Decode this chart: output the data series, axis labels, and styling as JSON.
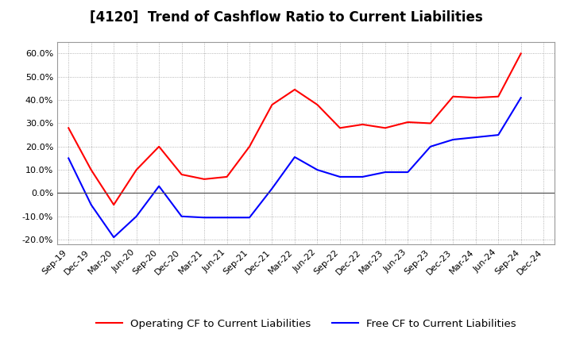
{
  "title": "[4120]  Trend of Cashflow Ratio to Current Liabilities",
  "x_labels": [
    "Sep-19",
    "Dec-19",
    "Mar-20",
    "Jun-20",
    "Sep-20",
    "Dec-20",
    "Mar-21",
    "Jun-21",
    "Sep-21",
    "Dec-21",
    "Mar-22",
    "Jun-22",
    "Sep-22",
    "Dec-22",
    "Mar-23",
    "Jun-23",
    "Sep-23",
    "Dec-23",
    "Mar-24",
    "Jun-24",
    "Sep-24",
    "Dec-24"
  ],
  "operating_cf": [
    0.28,
    0.1,
    -0.05,
    0.1,
    0.2,
    0.08,
    0.06,
    0.07,
    0.2,
    0.38,
    0.445,
    0.38,
    0.28,
    0.295,
    0.28,
    0.305,
    0.3,
    0.415,
    0.41,
    0.415,
    0.6,
    null
  ],
  "free_cf": [
    0.15,
    -0.05,
    -0.19,
    -0.1,
    0.03,
    -0.1,
    -0.105,
    -0.105,
    -0.105,
    0.02,
    0.155,
    0.1,
    0.07,
    0.07,
    0.09,
    0.09,
    0.2,
    0.23,
    0.24,
    0.25,
    0.41,
    null
  ],
  "ylim": [
    -0.22,
    0.65
  ],
  "yticks": [
    -0.2,
    -0.1,
    0.0,
    0.1,
    0.2,
    0.3,
    0.4,
    0.5,
    0.6
  ],
  "operating_color": "#FF0000",
  "free_color": "#0000FF",
  "background_color": "#FFFFFF",
  "grid_color": "#888888",
  "title_fontsize": 12,
  "legend_fontsize": 9.5,
  "tick_fontsize": 8
}
